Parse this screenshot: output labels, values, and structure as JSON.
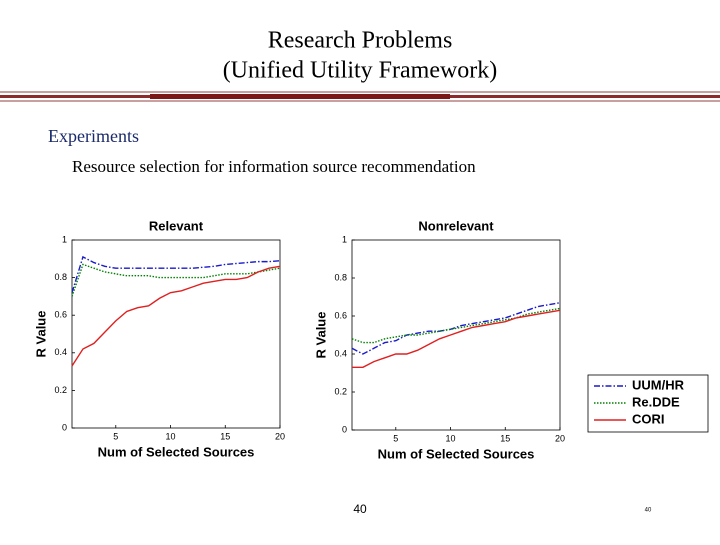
{
  "header": {
    "title_lines": [
      "Research Problems",
      "(Unified Utility Framework)"
    ]
  },
  "body": {
    "bullet": "Experiments",
    "sub_bullet": "Resource selection for information source recommendation"
  },
  "chart_data": [
    {
      "type": "line",
      "title": "Relevant",
      "x_label": "Num of Selected Sources",
      "y_label": "R Value",
      "x": [
        1,
        2,
        3,
        4,
        5,
        6,
        7,
        8,
        9,
        10,
        11,
        12,
        13,
        14,
        15,
        16,
        17,
        18,
        19,
        20
      ],
      "xlim": [
        1,
        20
      ],
      "xticks": [
        5,
        10,
        15,
        20
      ],
      "ylim": [
        0,
        1
      ],
      "yticks": [
        0,
        0.2,
        0.4,
        0.6,
        0.8,
        1
      ],
      "series": [
        {
          "color": "#1a1acc",
          "dash": "dashdot",
          "values": [
            0.72,
            0.91,
            0.88,
            0.86,
            0.85,
            0.85,
            0.85,
            0.85,
            0.85,
            0.85,
            0.85,
            0.85,
            0.855,
            0.86,
            0.87,
            0.875,
            0.88,
            0.885,
            0.885,
            0.89
          ]
        },
        {
          "color": "#008000",
          "dash": "dotted",
          "values": [
            0.7,
            0.87,
            0.85,
            0.83,
            0.82,
            0.81,
            0.81,
            0.81,
            0.8,
            0.8,
            0.8,
            0.8,
            0.8,
            0.81,
            0.82,
            0.82,
            0.82,
            0.83,
            0.84,
            0.85
          ]
        },
        {
          "color": "#e02020",
          "dash": "solid",
          "values": [
            0.33,
            0.42,
            0.45,
            0.51,
            0.57,
            0.62,
            0.64,
            0.65,
            0.69,
            0.72,
            0.73,
            0.75,
            0.77,
            0.78,
            0.79,
            0.79,
            0.8,
            0.83,
            0.85,
            0.86
          ]
        }
      ]
    },
    {
      "type": "line",
      "title": "Nonrelevant",
      "x_label": "Num of Selected Sources",
      "y_label": "R Value",
      "x": [
        1,
        2,
        3,
        4,
        5,
        6,
        7,
        8,
        9,
        10,
        11,
        12,
        13,
        14,
        15,
        16,
        17,
        18,
        19,
        20
      ],
      "xlim": [
        1,
        20
      ],
      "xticks": [
        5,
        10,
        15,
        20
      ],
      "ylim": [
        0,
        1
      ],
      "yticks": [
        0,
        0.2,
        0.4,
        0.6,
        0.8,
        1
      ],
      "series": [
        {
          "name": "UUM/HR",
          "color": "#1a1acc",
          "dash": "dashdot",
          "values": [
            0.43,
            0.4,
            0.43,
            0.46,
            0.47,
            0.5,
            0.51,
            0.52,
            0.52,
            0.53,
            0.55,
            0.56,
            0.57,
            0.58,
            0.59,
            0.61,
            0.63,
            0.65,
            0.66,
            0.67
          ]
        },
        {
          "name": "Re.DDE",
          "color": "#008000",
          "dash": "dotted",
          "values": [
            0.48,
            0.46,
            0.46,
            0.48,
            0.49,
            0.5,
            0.5,
            0.51,
            0.52,
            0.53,
            0.54,
            0.55,
            0.56,
            0.57,
            0.58,
            0.59,
            0.61,
            0.62,
            0.63,
            0.64
          ]
        },
        {
          "name": "CORI",
          "color": "#e02020",
          "dash": "solid",
          "values": [
            0.33,
            0.33,
            0.36,
            0.38,
            0.4,
            0.4,
            0.42,
            0.45,
            0.48,
            0.5,
            0.52,
            0.54,
            0.55,
            0.56,
            0.57,
            0.59,
            0.6,
            0.61,
            0.62,
            0.63
          ]
        }
      ]
    }
  ],
  "footer": {
    "page_number": "40",
    "corner_number": "40"
  }
}
